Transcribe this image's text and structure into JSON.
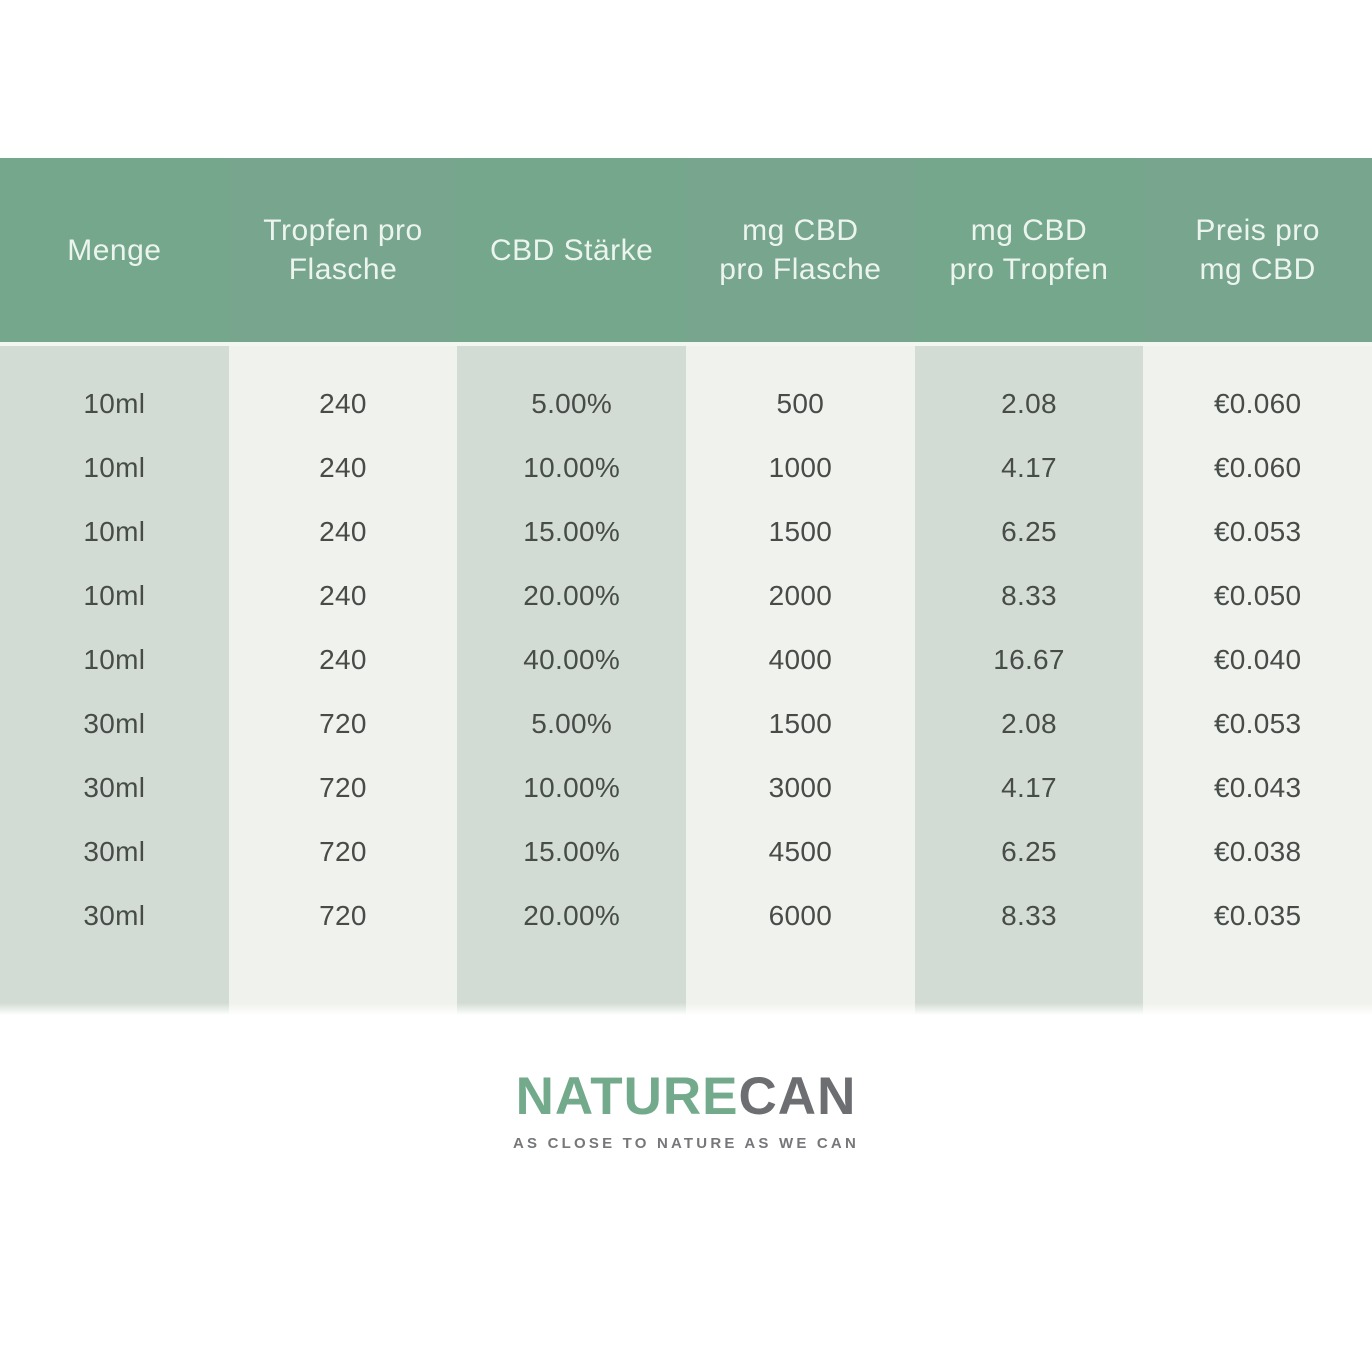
{
  "chart_data": {
    "type": "table",
    "columns": [
      "Menge",
      "Tropfen pro\nFlasche",
      "CBD Stärke",
      "mg CBD\npro Flasche",
      "mg CBD\npro Tropfen",
      "Preis pro\nmg CBD"
    ],
    "rows": [
      [
        "10ml",
        "240",
        "5.00%",
        "500",
        "2.08",
        "€0.060"
      ],
      [
        "10ml",
        "240",
        "10.00%",
        "1000",
        "4.17",
        "€0.060"
      ],
      [
        "10ml",
        "240",
        "15.00%",
        "1500",
        "6.25",
        "€0.053"
      ],
      [
        "10ml",
        "240",
        "20.00%",
        "2000",
        "8.33",
        "€0.050"
      ],
      [
        "10ml",
        "240",
        "40.00%",
        "4000",
        "16.67",
        "€0.040"
      ],
      [
        "30ml",
        "720",
        "5.00%",
        "1500",
        "2.08",
        "€0.053"
      ],
      [
        "30ml",
        "720",
        "10.00%",
        "3000",
        "4.17",
        "€0.043"
      ],
      [
        "30ml",
        "720",
        "15.00%",
        "4500",
        "6.25",
        "€0.038"
      ],
      [
        "30ml",
        "720",
        "20.00%",
        "6000",
        "8.33",
        "€0.035"
      ]
    ],
    "title": "",
    "legend": null,
    "grid": false
  },
  "logo": {
    "part1": "NATURE",
    "part2": "CAN",
    "tagline": "AS CLOSE TO NATURE AS WE CAN"
  },
  "colors": {
    "head-odd": "#74a78b",
    "head-even": "#78a58e",
    "head-text": "#ecf4ee",
    "body-odd": "#d3dcd4",
    "body-even": "#f0f2ed",
    "body-text": "#474c49",
    "separator": "#f3f7f2",
    "logo-green": "#73aa8b",
    "logo-gray": "#6d6e71",
    "tagline-gray": "#76777a"
  }
}
